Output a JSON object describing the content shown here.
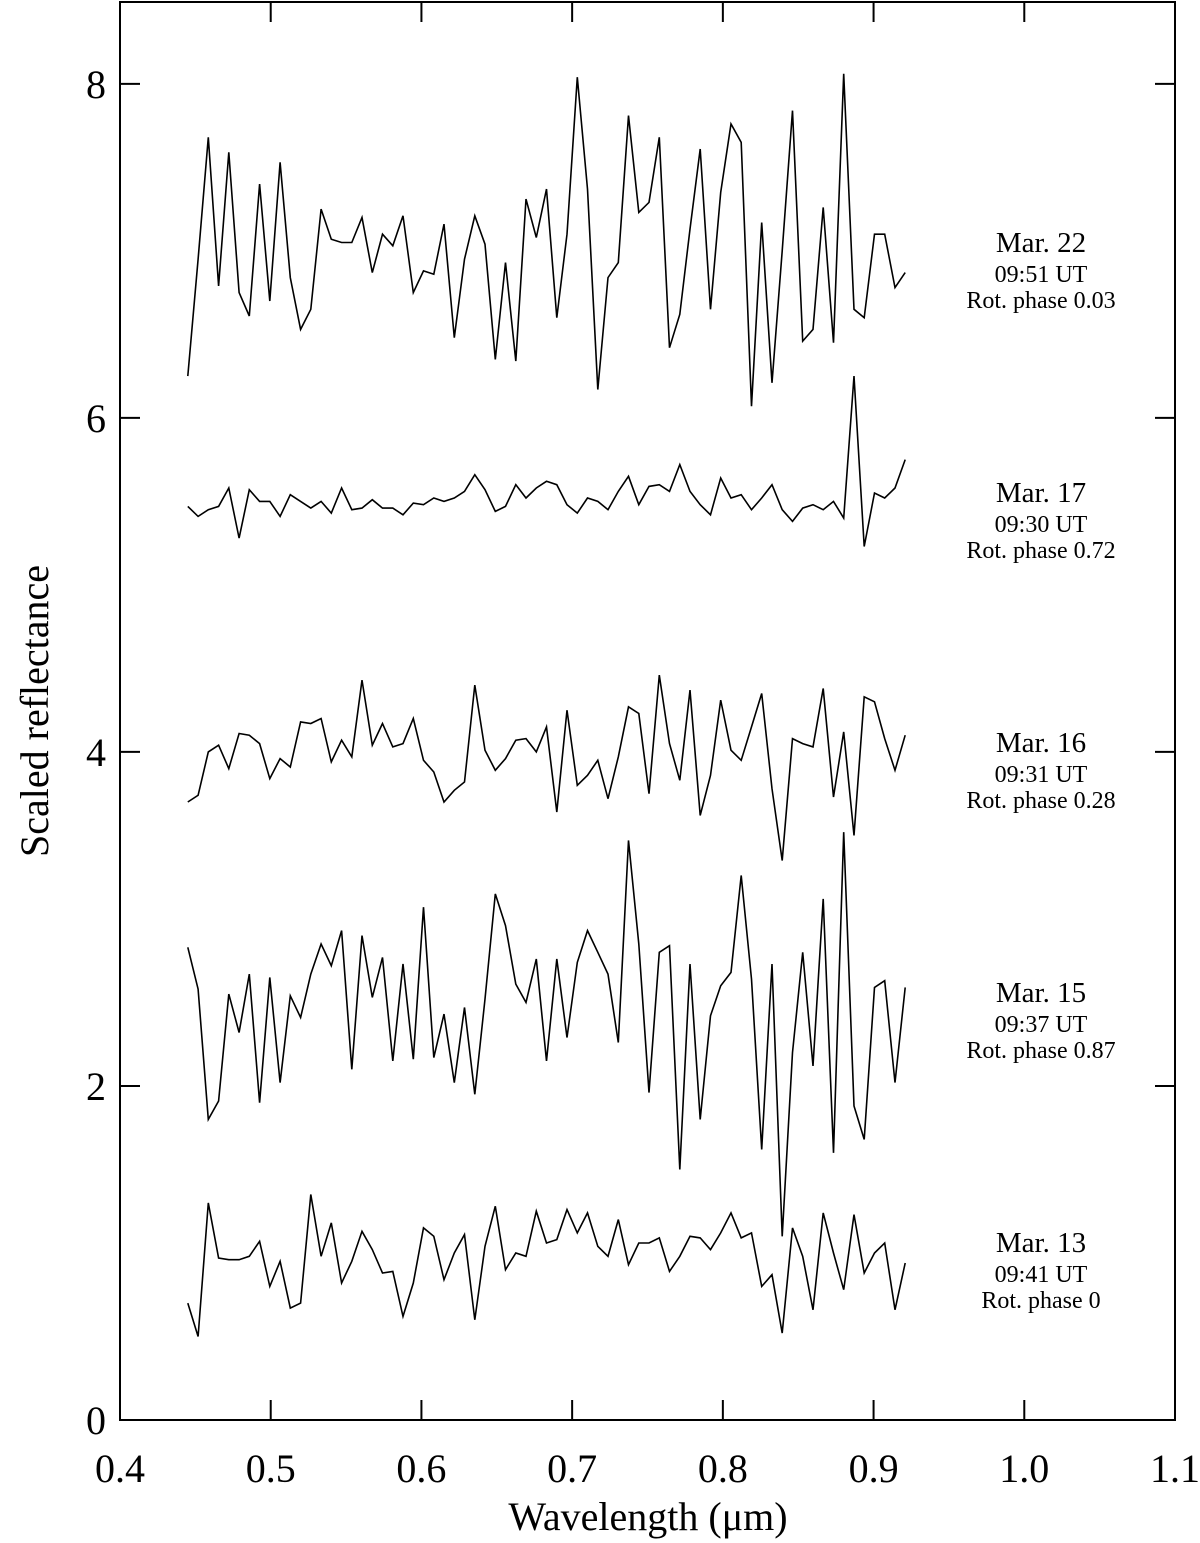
{
  "chart_data": {
    "type": "line",
    "xlabel": "Wavelength (μm)",
    "ylabel": "Scaled reflectance",
    "xlim": [
      0.4,
      1.1
    ],
    "ylim": [
      0,
      8.49
    ],
    "xticks": [
      0.4,
      0.5,
      0.6,
      0.7,
      0.8,
      0.9,
      {
        "value": 1,
        "label": "1.0"
      },
      1.1
    ],
    "yticks": [
      0,
      2,
      4,
      6,
      8
    ],
    "x": [
      0.445,
      0.4518,
      0.4586,
      0.4654,
      0.4722,
      0.479,
      0.4858,
      0.4926,
      0.4994,
      0.5062,
      0.513,
      0.5198,
      0.5266,
      0.5334,
      0.5402,
      0.547,
      0.5538,
      0.5606,
      0.5674,
      0.5742,
      0.581,
      0.5878,
      0.5946,
      0.6014,
      0.6082,
      0.615,
      0.6218,
      0.6286,
      0.6354,
      0.6422,
      0.649,
      0.6558,
      0.6626,
      0.6694,
      0.6762,
      0.683,
      0.6898,
      0.6966,
      0.7034,
      0.7102,
      0.717,
      0.7238,
      0.7306,
      0.7374,
      0.7442,
      0.751,
      0.7578,
      0.7646,
      0.7714,
      0.7782,
      0.785,
      0.7918,
      0.7986,
      0.8054,
      0.8122,
      0.819,
      0.8258,
      0.8326,
      0.8394,
      0.8462,
      0.853,
      0.8598,
      0.8666,
      0.8734,
      0.8802,
      0.887,
      0.8938,
      0.9006,
      0.9074,
      0.9142,
      0.921
    ],
    "series": [
      {
        "name": "Mar. 22",
        "label_lines": [
          "09:51 UT",
          "Rot. phase 0.03"
        ],
        "color": "#000000",
        "values": [
          6.25,
          6.95,
          7.68,
          6.79,
          7.59,
          6.75,
          6.61,
          7.4,
          6.7,
          7.53,
          6.84,
          6.53,
          6.65,
          7.25,
          7.07,
          7.05,
          7.05,
          7.2,
          6.87,
          7.1,
          7.03,
          7.21,
          6.75,
          6.88,
          6.86,
          7.16,
          6.48,
          6.95,
          7.21,
          7.04,
          6.35,
          6.93,
          6.34,
          7.31,
          7.08,
          7.37,
          6.6,
          7.1,
          8.04,
          7.37,
          6.17,
          6.84,
          6.93,
          7.81,
          7.23,
          7.29,
          7.68,
          6.42,
          6.62,
          7.13,
          7.61,
          6.65,
          7.35,
          7.76,
          7.65,
          6.07,
          7.17,
          6.21,
          7.0,
          7.84,
          6.46,
          6.53,
          7.26,
          6.45,
          8.06,
          6.65,
          6.6,
          7.1,
          7.1,
          6.78,
          6.87
        ]
      },
      {
        "name": "Mar. 17",
        "label_lines": [
          "09:30 UT",
          "Rot. phase 0.72"
        ],
        "color": "#000000",
        "values": [
          5.47,
          5.41,
          5.45,
          5.47,
          5.58,
          5.28,
          5.57,
          5.5,
          5.5,
          5.41,
          5.54,
          5.5,
          5.46,
          5.5,
          5.43,
          5.58,
          5.45,
          5.46,
          5.51,
          5.46,
          5.46,
          5.42,
          5.49,
          5.48,
          5.52,
          5.5,
          5.52,
          5.56,
          5.66,
          5.57,
          5.44,
          5.47,
          5.6,
          5.52,
          5.58,
          5.62,
          5.6,
          5.48,
          5.43,
          5.52,
          5.5,
          5.45,
          5.56,
          5.65,
          5.48,
          5.59,
          5.6,
          5.56,
          5.72,
          5.56,
          5.48,
          5.42,
          5.64,
          5.52,
          5.54,
          5.45,
          5.52,
          5.6,
          5.45,
          5.38,
          5.46,
          5.48,
          5.45,
          5.5,
          5.4,
          6.25,
          5.23,
          5.55,
          5.52,
          5.58,
          5.75
        ]
      },
      {
        "name": "Mar. 16",
        "label_lines": [
          "09:31 UT",
          "Rot. phase 0.28"
        ],
        "color": "#000000",
        "values": [
          3.7,
          3.74,
          4.0,
          4.04,
          3.9,
          4.11,
          4.1,
          4.05,
          3.84,
          3.96,
          3.91,
          4.18,
          4.17,
          4.2,
          3.94,
          4.07,
          3.97,
          4.43,
          4.04,
          4.17,
          4.03,
          4.05,
          4.2,
          3.95,
          3.88,
          3.7,
          3.77,
          3.82,
          4.4,
          4.01,
          3.89,
          3.96,
          4.07,
          4.08,
          4.0,
          4.15,
          3.64,
          4.25,
          3.8,
          3.86,
          3.95,
          3.72,
          3.97,
          4.27,
          4.23,
          3.75,
          4.46,
          4.05,
          3.83,
          4.37,
          3.62,
          3.86,
          4.31,
          4.01,
          3.95,
          4.15,
          4.35,
          3.78,
          3.35,
          4.08,
          4.05,
          4.03,
          4.38,
          3.73,
          4.12,
          3.5,
          4.33,
          4.3,
          4.08,
          3.89,
          4.1
        ]
      },
      {
        "name": "Mar. 15",
        "label_lines": [
          "09:37 UT",
          "Rot. phase 0.87"
        ],
        "color": "#000000",
        "values": [
          2.83,
          2.58,
          1.8,
          1.91,
          2.55,
          2.32,
          2.67,
          1.9,
          2.65,
          2.02,
          2.54,
          2.41,
          2.67,
          2.85,
          2.72,
          2.93,
          2.1,
          2.9,
          2.53,
          2.77,
          2.15,
          2.73,
          2.16,
          3.07,
          2.17,
          2.43,
          2.02,
          2.47,
          1.95,
          2.52,
          3.15,
          2.96,
          2.61,
          2.5,
          2.76,
          2.15,
          2.76,
          2.29,
          2.74,
          2.93,
          2.8,
          2.67,
          2.26,
          3.47,
          2.85,
          1.96,
          2.8,
          2.84,
          1.5,
          2.73,
          1.8,
          2.42,
          2.6,
          2.68,
          3.26,
          2.64,
          1.62,
          2.73,
          1.1,
          2.2,
          2.8,
          2.12,
          3.12,
          1.6,
          3.52,
          1.88,
          1.68,
          2.59,
          2.63,
          2.02,
          2.59
        ]
      },
      {
        "name": "Mar. 13",
        "label_lines": [
          "09:41 UT",
          "Rot. phase 0"
        ],
        "color": "#000000",
        "values": [
          0.7,
          0.5,
          1.3,
          0.97,
          0.96,
          0.96,
          0.98,
          1.07,
          0.8,
          0.95,
          0.67,
          0.7,
          1.35,
          0.98,
          1.18,
          0.82,
          0.95,
          1.13,
          1.02,
          0.88,
          0.89,
          0.62,
          0.82,
          1.15,
          1.1,
          0.84,
          1.0,
          1.11,
          0.6,
          1.04,
          1.28,
          0.9,
          1.0,
          0.98,
          1.25,
          1.06,
          1.08,
          1.26,
          1.12,
          1.24,
          1.04,
          0.98,
          1.2,
          0.93,
          1.06,
          1.06,
          1.09,
          0.89,
          0.98,
          1.1,
          1.09,
          1.02,
          1.12,
          1.24,
          1.09,
          1.12,
          0.8,
          0.87,
          0.52,
          1.15,
          0.98,
          0.66,
          1.24,
          1.0,
          0.78,
          1.23,
          0.88,
          1.0,
          1.06,
          0.66,
          0.94
        ]
      }
    ]
  }
}
